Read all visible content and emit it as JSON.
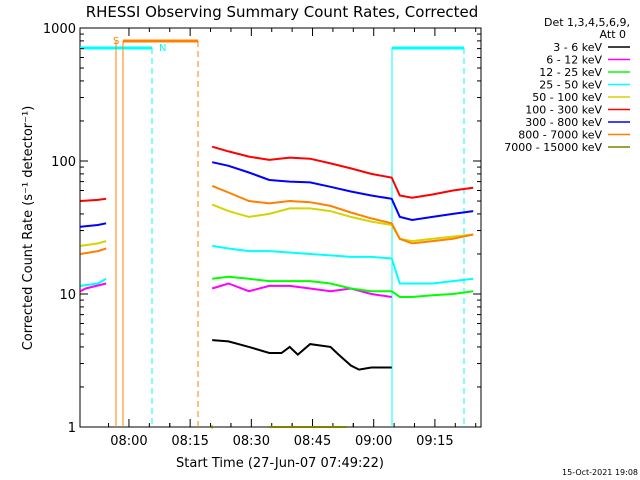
{
  "chart_data": {
    "type": "line",
    "title": "RHESSI Observing Summary Count Rates, Corrected",
    "xlabel": "Start Time (27-Jun-07 07:49:22)",
    "ylabel": "Corrected Count Rate (s⁻¹ detector⁻¹)",
    "yscale": "log",
    "ylim": [
      1,
      1000
    ],
    "xlim_minutes": [
      -1.4,
      96.9
    ],
    "x_ticks": [
      {
        "label": "08:00",
        "value": 10.6
      },
      {
        "label": "08:15",
        "value": 25.6
      },
      {
        "label": "08:30",
        "value": 40.6
      },
      {
        "label": "08:45",
        "value": 55.6
      },
      {
        "label": "09:00",
        "value": 70.6
      },
      {
        "label": "09:15",
        "value": 85.6
      }
    ],
    "y_ticks": [
      {
        "label": "1",
        "value": 1
      },
      {
        "label": "10",
        "value": 10
      },
      {
        "label": "100",
        "value": 100
      },
      {
        "label": "1000",
        "value": 1000
      }
    ],
    "legend": {
      "header1": "Det 1,3,4,5,6,9,",
      "header2": "Att 0",
      "placement": "right"
    },
    "flags": {
      "S": "S",
      "N": "N"
    },
    "timestamp": "15-Oct-2021 19:08",
    "series": [
      {
        "name": "3 - 6 keV",
        "color": "#000000",
        "x": [
          31.0,
          35.0,
          40.0,
          45.0,
          48.0,
          50.0,
          52.0,
          55.0,
          60.0,
          62.0,
          65.0,
          67.0,
          70.0,
          75.0
        ],
        "values": [
          4.5,
          4.4,
          4.0,
          3.6,
          3.6,
          4.0,
          3.5,
          4.2,
          4.0,
          3.5,
          2.9,
          2.7,
          2.8,
          2.8
        ]
      },
      {
        "name": "6 - 12 keV",
        "color": "#ff00ff",
        "x": [
          -1.3,
          0,
          5.0,
          31.0,
          35.0,
          40.0,
          45.0,
          50.0,
          55.0,
          60.0,
          65.0,
          70.0,
          75.0
        ],
        "values": [
          10.5,
          11.0,
          12.0,
          11.0,
          12.0,
          10.5,
          11.5,
          11.5,
          11.0,
          10.5,
          11.0,
          10.0,
          9.5
        ]
      },
      {
        "name": "12 - 25 keV",
        "color": "#00ff00",
        "x": [
          31.0,
          35.0,
          40.0,
          45.0,
          50.0,
          55.0,
          60.0,
          65.0,
          70.0,
          75.0,
          77.0,
          80.0,
          85.0,
          90.0,
          95.0
        ],
        "values": [
          13.0,
          13.5,
          13.0,
          12.5,
          12.5,
          12.5,
          12.0,
          11.0,
          10.5,
          10.5,
          9.5,
          9.5,
          9.8,
          10.0,
          10.5
        ]
      },
      {
        "name": "25 - 50 keV",
        "color": "#00ffff",
        "x": [
          -1.3,
          3.0,
          5.0,
          31.0,
          35.0,
          40.0,
          45.0,
          50.0,
          55.0,
          60.0,
          65.0,
          70.0,
          75.0,
          77.0,
          80.0,
          85.0,
          90.0,
          95.0
        ],
        "values": [
          11.5,
          12.0,
          13.0,
          23.0,
          22.0,
          21.0,
          21.0,
          20.5,
          20.0,
          19.5,
          19.0,
          19.0,
          18.5,
          12.0,
          12.0,
          12.0,
          12.5,
          13.0
        ]
      },
      {
        "name": "50 - 100 keV",
        "color": "#d4d400",
        "x": [
          -1.3,
          3.0,
          5.0,
          31.0,
          35.0,
          40.0,
          45.0,
          50.0,
          55.0,
          60.0,
          65.0,
          70.0,
          75.0,
          77.0,
          80.0,
          85.0,
          90.0,
          95.0
        ],
        "values": [
          23.0,
          24.0,
          25.0,
          47.0,
          42.0,
          38.0,
          40.0,
          44.0,
          44.0,
          42.0,
          38.0,
          35.0,
          33.0,
          26.0,
          25.0,
          26.0,
          27.0,
          28.0
        ]
      },
      {
        "name": "100 - 300 keV",
        "color": "#ff0000",
        "x": [
          -1.3,
          3.0,
          5.0,
          31.0,
          35.0,
          40.0,
          45.0,
          50.0,
          55.0,
          60.0,
          65.0,
          70.0,
          75.0,
          77.0,
          80.0,
          85.0,
          90.0,
          95.0
        ],
        "values": [
          50.0,
          51.0,
          52.0,
          128.0,
          118.0,
          108.0,
          102.0,
          106.0,
          104.0,
          96.0,
          88.0,
          80.0,
          75.0,
          55.0,
          53.0,
          56.0,
          60.0,
          63.0
        ]
      },
      {
        "name": "300 - 800 keV",
        "color": "#0000ff",
        "x": [
          -1.3,
          3.0,
          5.0,
          31.0,
          35.0,
          40.0,
          45.0,
          50.0,
          55.0,
          60.0,
          65.0,
          70.0,
          75.0,
          77.0,
          80.0,
          85.0,
          90.0,
          95.0
        ],
        "values": [
          32.0,
          33.0,
          34.0,
          98.0,
          92.0,
          82.0,
          72.0,
          70.0,
          69.0,
          64.0,
          59.0,
          55.0,
          52.0,
          38.0,
          36.0,
          38.0,
          40.0,
          42.0
        ]
      },
      {
        "name": "800 - 7000 keV",
        "color": "#ff8000",
        "x": [
          -1.3,
          3.0,
          5.0,
          31.0,
          35.0,
          40.0,
          45.0,
          50.0,
          55.0,
          60.0,
          65.0,
          70.0,
          75.0,
          77.0,
          80.0,
          85.0,
          90.0,
          95.0
        ],
        "values": [
          20.0,
          21.0,
          22.0,
          65.0,
          58.0,
          50.0,
          48.0,
          50.0,
          49.0,
          46.0,
          41.0,
          37.0,
          34.0,
          26.0,
          24.0,
          25.0,
          26.0,
          28.0
        ]
      },
      {
        "name": "7000 - 15000 keV",
        "color": "#808000",
        "x": [
          31.0,
          45.0,
          48.0,
          55.0,
          60.0,
          64.0
        ],
        "values": [
          1.0,
          1.0,
          1.0,
          1.0,
          1.0,
          1.0
        ]
      }
    ]
  }
}
